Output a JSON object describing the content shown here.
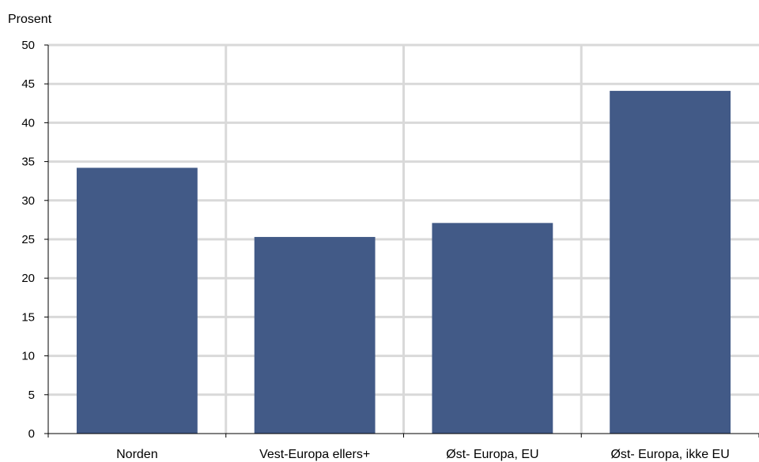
{
  "chart_data": {
    "type": "bar",
    "title": "",
    "ylabel": "Prosent",
    "xlabel": "",
    "categories": [
      "Norden",
      "Vest-Europa ellers+",
      "Øst- Europa, EU",
      "Øst- Europa, ikke EU"
    ],
    "values": [
      34.2,
      25.3,
      27.1,
      44.1
    ],
    "ylim": [
      0,
      50
    ],
    "yticks": [
      "0",
      "5",
      "10",
      "15",
      "20",
      "25",
      "30",
      "35",
      "40",
      "45",
      "50"
    ],
    "grid": true,
    "legend": "none",
    "bar_color": "#425A87",
    "grid_color": "#D9D9D9"
  }
}
